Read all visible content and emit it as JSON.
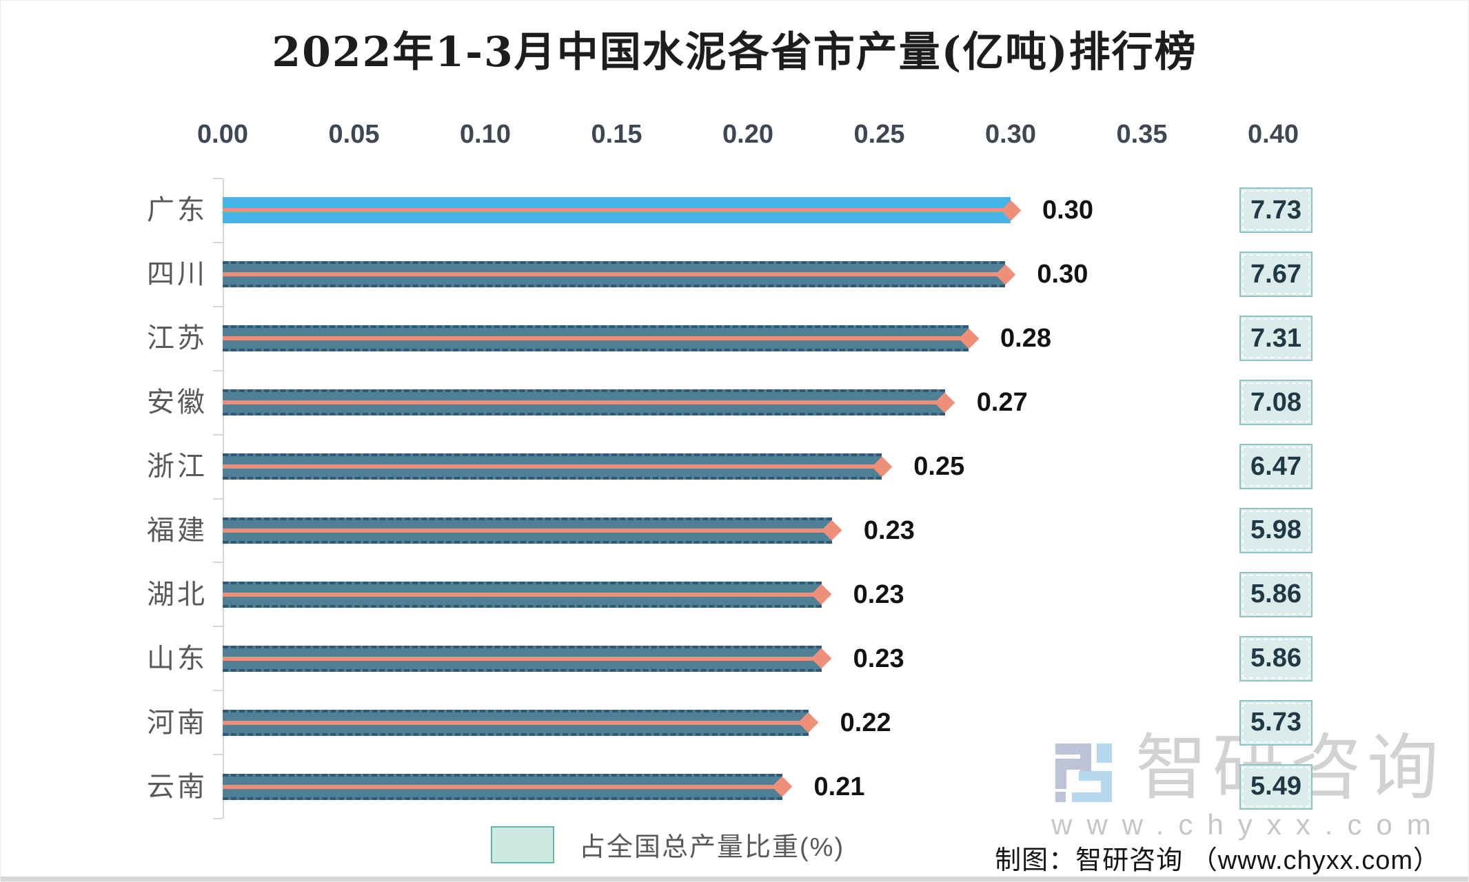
{
  "title": "2022年1-3月中国水泥各省市产量(亿吨)排行榜",
  "chart_data": {
    "type": "bar",
    "orientation": "horizontal",
    "title": "2022年1-3月中国水泥各省市产量(亿吨)排行榜",
    "categories": [
      "广东",
      "四川",
      "江苏",
      "安徽",
      "浙江",
      "福建",
      "湖北",
      "山东",
      "河南",
      "云南"
    ],
    "series": [
      {
        "name": "产量(亿吨)",
        "values": [
          0.3,
          0.3,
          0.28,
          0.27,
          0.25,
          0.23,
          0.23,
          0.23,
          0.22,
          0.21
        ],
        "labels": [
          "0.30",
          "0.30",
          "0.28",
          "0.27",
          "0.25",
          "0.23",
          "0.23",
          "0.23",
          "0.22",
          "0.21"
        ],
        "values_precise": [
          0.3,
          0.298,
          0.284,
          0.275,
          0.251,
          0.232,
          0.228,
          0.228,
          0.223,
          0.213
        ]
      },
      {
        "name": "占全国总产量比重(%)",
        "values": [
          7.73,
          7.67,
          7.31,
          7.08,
          6.47,
          5.98,
          5.86,
          5.86,
          5.73,
          5.49
        ],
        "labels": [
          "7.73",
          "7.67",
          "7.31",
          "7.08",
          "6.47",
          "5.98",
          "5.86",
          "5.86",
          "5.73",
          "5.49"
        ]
      }
    ],
    "x_axis": {
      "ticks": [
        "0.00",
        "0.05",
        "0.10",
        "0.15",
        "0.20",
        "0.25",
        "0.30",
        "0.35",
        "0.40"
      ],
      "min": 0,
      "max": 0.4
    },
    "legend": {
      "label": "占全国总产量比重(%)",
      "position": "bottom"
    },
    "grid": false,
    "highlight_first_bar": true
  },
  "footer": {
    "credit": "制图：智研咨询 （www.chyxx.com）"
  },
  "watermark": {
    "brand": "智研咨询",
    "url": "www.chyxx.com"
  },
  "colors": {
    "highlight_bar": "#47b4e8",
    "bar": "#4f8096",
    "bar_dash_border": "#2f5778",
    "share_line": "#ee8f79",
    "share_marker": "#ee8f79",
    "box_fill": "#dbecea",
    "box_border": "#8fc3c4",
    "axis": "#d8d8d8",
    "legend_swatch_fill": "#cee9e2",
    "legend_swatch_border": "#65b4ab"
  }
}
